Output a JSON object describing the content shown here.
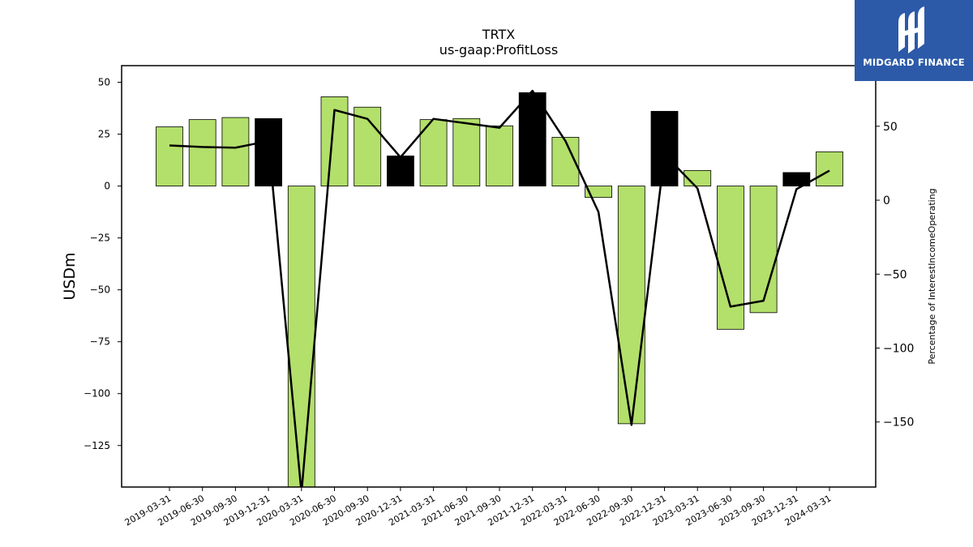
{
  "chart_data": {
    "type": "bar",
    "title": "TRTX",
    "subtitle": "us-gaap:ProfitLoss",
    "ylabel": "USDm",
    "y2label": "Percentage of InterestIncomeOperating",
    "ylim": [
      -145,
      58
    ],
    "y2lim": [
      -194,
      91
    ],
    "yticks": [
      50,
      25,
      0,
      -25,
      -50,
      -75,
      -100,
      -125
    ],
    "y2ticks": [
      50,
      0,
      -50,
      -100,
      -150
    ],
    "categories": [
      "2019-03-31",
      "2019-06-30",
      "2019-09-30",
      "2019-12-31",
      "2020-03-31",
      "2020-06-30",
      "2020-09-30",
      "2020-12-31",
      "2021-03-31",
      "2021-06-30",
      "2021-09-30",
      "2021-12-31",
      "2022-03-31",
      "2022-06-30",
      "2022-09-30",
      "2022-12-31",
      "2023-03-31",
      "2023-06-30",
      "2023-09-30",
      "2023-12-31",
      "2024-03-31"
    ],
    "series": [
      {
        "kind": "bar",
        "values": [
          28.5,
          32,
          33,
          32.5,
          -146,
          43,
          38,
          14.5,
          32,
          32.5,
          29,
          45,
          23.5,
          -5.5,
          -114.5,
          36,
          7.5,
          -69,
          -61,
          6.5,
          16.5
        ],
        "highlight": [
          false,
          false,
          false,
          true,
          false,
          false,
          false,
          true,
          false,
          false,
          false,
          true,
          false,
          false,
          false,
          true,
          false,
          false,
          false,
          true,
          false
        ]
      },
      {
        "kind": "line",
        "axis": "right",
        "values": [
          37,
          36,
          35.5,
          40,
          -198,
          61,
          55,
          29,
          55,
          52,
          49,
          74,
          40,
          -8,
          -152,
          31,
          8,
          -72,
          -68,
          7.5,
          20
        ]
      }
    ],
    "colors": {
      "bar": "#b3df6b",
      "highlight": "#000000",
      "line": "#000000"
    }
  },
  "logo": {
    "text": "MIDGARD FINANCE",
    "background": "#2c5aa9"
  }
}
